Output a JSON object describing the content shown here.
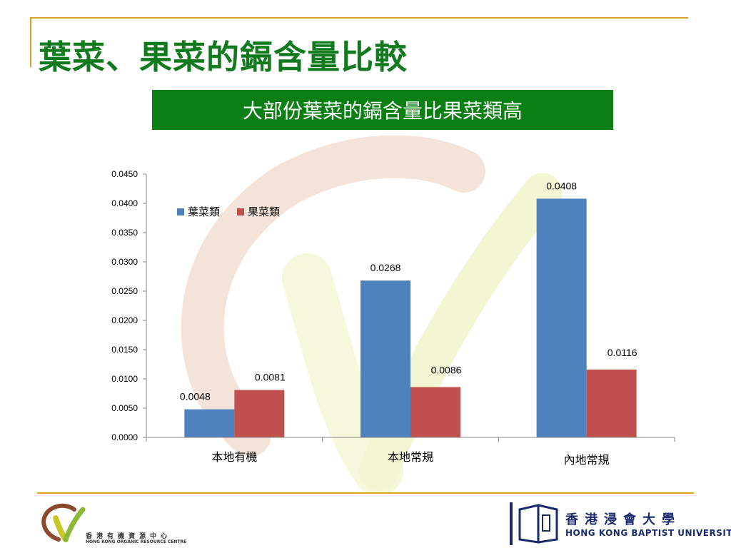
{
  "slide": {
    "title": "葉菜、果菜的鎘含量比較",
    "banner": "大部份葉菜的鎘含量比果菜類高"
  },
  "colors": {
    "title_green": "#117a1e",
    "banner_green": "#0b7f14",
    "rule_gold": "#d9a520",
    "leafy_blue": "#4f81bd",
    "fruit_red": "#c0504d"
  },
  "chart_data": {
    "type": "bar",
    "categories": [
      "本地有機",
      "本地常規",
      "內地常規"
    ],
    "series": [
      {
        "name": "葉菜類",
        "values": [
          0.0048,
          0.0268,
          0.0408
        ],
        "color": "#4f81bd"
      },
      {
        "name": "果菜類",
        "values": [
          0.0081,
          0.0086,
          0.0116
        ],
        "color": "#c0504d"
      }
    ],
    "data_labels": [
      [
        "0.0048",
        "0.0268",
        "0.0408"
      ],
      [
        "0.0081",
        "0.0086",
        "0.0116"
      ]
    ],
    "yticks": [
      "0.0000",
      "0.0050",
      "0.0100",
      "0.0150",
      "0.0200",
      "0.0250",
      "0.0300",
      "0.0350",
      "0.0400",
      "0.0450"
    ],
    "ylim": [
      0,
      0.045
    ],
    "legend": "top-left",
    "grid": false
  },
  "footer": {
    "org_name_zh": "香港有機資源中心",
    "org_name_en": "HONG KONG ORGANIC RESOURCE CENTRE",
    "uni_name_zh": "香港浸會大學",
    "uni_name_en": "HONG KONG BAPTIST UNIVERSITY"
  }
}
